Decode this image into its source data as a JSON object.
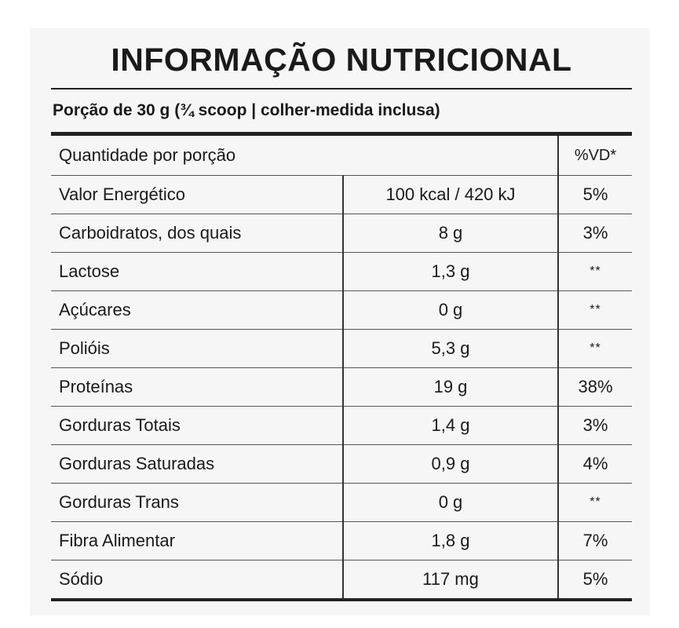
{
  "title": "INFORMAÇÃO NUTRICIONAL",
  "portion": "Porção de 30 g (¾ scoop | colher-medida inclusa)",
  "header": {
    "quantity_label": "Quantidade por porção",
    "vd_label": "%VD*"
  },
  "rows": [
    {
      "name": "Valor Energético",
      "amount": "100 kcal / 420 kJ",
      "vd": "5%"
    },
    {
      "name": "Carboidratos, dos quais",
      "amount": "8 g",
      "vd": "3%"
    },
    {
      "name": "Lactose",
      "amount": "1,3 g",
      "vd": "**"
    },
    {
      "name": "Açúcares",
      "amount": "0 g",
      "vd": "**"
    },
    {
      "name": "Polióis",
      "amount": "5,3 g",
      "vd": "**"
    },
    {
      "name": "Proteínas",
      "amount": "19 g",
      "vd": "38%"
    },
    {
      "name": "Gorduras Totais",
      "amount": "1,4 g",
      "vd": "3%"
    },
    {
      "name": "Gorduras Saturadas",
      "amount": "0,9 g",
      "vd": "4%"
    },
    {
      "name": "Gorduras Trans",
      "amount": "0 g",
      "vd": "**"
    },
    {
      "name": "Fibra Alimentar",
      "amount": "1,8 g",
      "vd": "7%"
    },
    {
      "name": "Sódio",
      "amount": "117 mg",
      "vd": "5%"
    }
  ]
}
